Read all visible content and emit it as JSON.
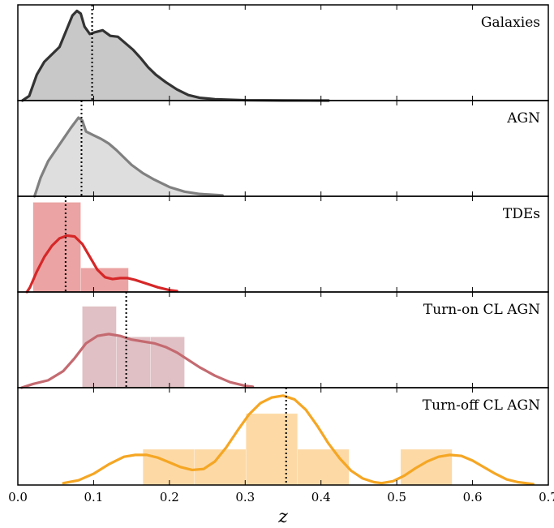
{
  "chart_data": {
    "type": "area",
    "xlabel": "z",
    "xlim": [
      0.0,
      0.7
    ],
    "xticks": [
      "0.0",
      "0.1",
      "0.2",
      "0.3",
      "0.4",
      "0.5",
      "0.6",
      "0.7"
    ],
    "grid": false,
    "panels": [
      {
        "label": "Galaxies",
        "color": "#333333",
        "fill": "#c8c8c8",
        "median": 0.098,
        "ymax": 1.0,
        "kde": [
          [
            0.006,
            0.0
          ],
          [
            0.015,
            0.05
          ],
          [
            0.025,
            0.28
          ],
          [
            0.035,
            0.42
          ],
          [
            0.045,
            0.5
          ],
          [
            0.055,
            0.58
          ],
          [
            0.065,
            0.78
          ],
          [
            0.072,
            0.92
          ],
          [
            0.078,
            0.97
          ],
          [
            0.083,
            0.94
          ],
          [
            0.088,
            0.8
          ],
          [
            0.095,
            0.72
          ],
          [
            0.102,
            0.74
          ],
          [
            0.112,
            0.76
          ],
          [
            0.122,
            0.7
          ],
          [
            0.132,
            0.69
          ],
          [
            0.142,
            0.62
          ],
          [
            0.152,
            0.55
          ],
          [
            0.162,
            0.46
          ],
          [
            0.172,
            0.36
          ],
          [
            0.182,
            0.28
          ],
          [
            0.195,
            0.2
          ],
          [
            0.21,
            0.12
          ],
          [
            0.225,
            0.06
          ],
          [
            0.24,
            0.03
          ],
          [
            0.26,
            0.015
          ],
          [
            0.3,
            0.004
          ],
          [
            0.35,
            0.001
          ],
          [
            0.41,
            0.0
          ]
        ],
        "bars": []
      },
      {
        "label": "AGN",
        "color": "#808080",
        "fill": "#dedede",
        "median": 0.084,
        "ymax": 1.0,
        "kde": [
          [
            0.022,
            0.0
          ],
          [
            0.03,
            0.2
          ],
          [
            0.04,
            0.38
          ],
          [
            0.05,
            0.5
          ],
          [
            0.06,
            0.62
          ],
          [
            0.07,
            0.74
          ],
          [
            0.08,
            0.85
          ],
          [
            0.085,
            0.82
          ],
          [
            0.09,
            0.7
          ],
          [
            0.1,
            0.66
          ],
          [
            0.11,
            0.62
          ],
          [
            0.12,
            0.57
          ],
          [
            0.13,
            0.5
          ],
          [
            0.14,
            0.42
          ],
          [
            0.15,
            0.34
          ],
          [
            0.165,
            0.25
          ],
          [
            0.18,
            0.18
          ],
          [
            0.2,
            0.1
          ],
          [
            0.22,
            0.05
          ],
          [
            0.24,
            0.025
          ],
          [
            0.27,
            0.01
          ]
        ],
        "bars": []
      },
      {
        "label": "TDEs",
        "color": "#d62728",
        "fill": "#eba3a3",
        "median": 0.063,
        "ymax": 1.0,
        "kde": [
          [
            0.012,
            0.0
          ],
          [
            0.016,
            0.05
          ],
          [
            0.025,
            0.22
          ],
          [
            0.035,
            0.38
          ],
          [
            0.045,
            0.5
          ],
          [
            0.055,
            0.58
          ],
          [
            0.065,
            0.61
          ],
          [
            0.075,
            0.6
          ],
          [
            0.085,
            0.52
          ],
          [
            0.095,
            0.38
          ],
          [
            0.105,
            0.24
          ],
          [
            0.115,
            0.16
          ],
          [
            0.125,
            0.14
          ],
          [
            0.135,
            0.15
          ],
          [
            0.145,
            0.15
          ],
          [
            0.155,
            0.13
          ],
          [
            0.17,
            0.09
          ],
          [
            0.185,
            0.05
          ],
          [
            0.2,
            0.02
          ],
          [
            0.21,
            0.01
          ]
        ],
        "bars": [
          {
            "x0": 0.02,
            "x1": 0.083,
            "value": 0.97
          },
          {
            "x0": 0.083,
            "x1": 0.146,
            "value": 0.26
          }
        ]
      },
      {
        "label": "Turn-on CL AGN",
        "color": "#c46a70",
        "fill": "#e0c0c4",
        "median": 0.143,
        "ymax": 1.0,
        "kde": [
          [
            0.005,
            0.0
          ],
          [
            0.02,
            0.04
          ],
          [
            0.04,
            0.08
          ],
          [
            0.06,
            0.18
          ],
          [
            0.075,
            0.32
          ],
          [
            0.09,
            0.48
          ],
          [
            0.105,
            0.56
          ],
          [
            0.12,
            0.58
          ],
          [
            0.135,
            0.56
          ],
          [
            0.15,
            0.52
          ],
          [
            0.165,
            0.5
          ],
          [
            0.18,
            0.48
          ],
          [
            0.195,
            0.44
          ],
          [
            0.21,
            0.38
          ],
          [
            0.225,
            0.3
          ],
          [
            0.24,
            0.22
          ],
          [
            0.26,
            0.13
          ],
          [
            0.28,
            0.06
          ],
          [
            0.3,
            0.02
          ],
          [
            0.31,
            0.01
          ]
        ],
        "bars": [
          {
            "x0": 0.085,
            "x1": 0.13,
            "value": 0.88
          },
          {
            "x0": 0.13,
            "x1": 0.175,
            "value": 0.55
          },
          {
            "x0": 0.175,
            "x1": 0.22,
            "value": 0.55
          }
        ]
      },
      {
        "label": "Turn-off CL AGN",
        "color": "#f5a623",
        "fill": "#fdd9a6",
        "median": 0.354,
        "ymax": 1.0,
        "kde": [
          [
            0.06,
            0.02
          ],
          [
            0.08,
            0.05
          ],
          [
            0.1,
            0.12
          ],
          [
            0.12,
            0.22
          ],
          [
            0.14,
            0.3
          ],
          [
            0.155,
            0.32
          ],
          [
            0.17,
            0.32
          ],
          [
            0.185,
            0.29
          ],
          [
            0.2,
            0.24
          ],
          [
            0.215,
            0.19
          ],
          [
            0.23,
            0.16
          ],
          [
            0.245,
            0.17
          ],
          [
            0.26,
            0.25
          ],
          [
            0.275,
            0.4
          ],
          [
            0.29,
            0.58
          ],
          [
            0.305,
            0.75
          ],
          [
            0.32,
            0.87
          ],
          [
            0.335,
            0.93
          ],
          [
            0.35,
            0.95
          ],
          [
            0.365,
            0.91
          ],
          [
            0.38,
            0.8
          ],
          [
            0.395,
            0.63
          ],
          [
            0.41,
            0.44
          ],
          [
            0.425,
            0.28
          ],
          [
            0.44,
            0.15
          ],
          [
            0.455,
            0.07
          ],
          [
            0.47,
            0.03
          ],
          [
            0.48,
            0.02
          ],
          [
            0.495,
            0.04
          ],
          [
            0.51,
            0.1
          ],
          [
            0.525,
            0.18
          ],
          [
            0.54,
            0.25
          ],
          [
            0.555,
            0.3
          ],
          [
            0.57,
            0.32
          ],
          [
            0.585,
            0.31
          ],
          [
            0.6,
            0.26
          ],
          [
            0.615,
            0.19
          ],
          [
            0.63,
            0.12
          ],
          [
            0.645,
            0.06
          ],
          [
            0.66,
            0.03
          ],
          [
            0.68,
            0.01
          ]
        ],
        "bars": [
          {
            "x0": 0.165,
            "x1": 0.233,
            "value": 0.38
          },
          {
            "x0": 0.233,
            "x1": 0.301,
            "value": 0.38
          },
          {
            "x0": 0.301,
            "x1": 0.369,
            "value": 0.76
          },
          {
            "x0": 0.369,
            "x1": 0.437,
            "value": 0.38
          },
          {
            "x0": 0.505,
            "x1": 0.573,
            "value": 0.38
          }
        ]
      }
    ]
  }
}
